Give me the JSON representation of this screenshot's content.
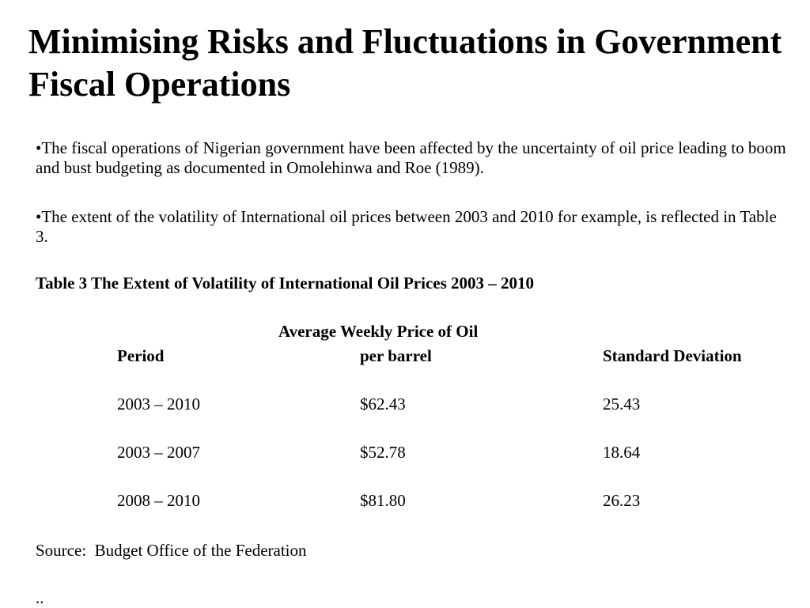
{
  "slide": {
    "title": "Minimising Risks and Fluctuations in Government Fiscal Operations",
    "bullets": [
      "•The fiscal operations of Nigerian government have been affected by the uncertainty of oil price leading to boom and bust budgeting as documented in Omolehinwa and Roe (1989).",
      "•The extent of the volatility of International oil prices between 2003 and 2010 for example, is reflected in Table 3."
    ]
  },
  "table": {
    "caption": "Table 3 The Extent of Volatility of International Oil Prices 2003 – 2010",
    "price_header_line1": "Average Weekly Price of Oil",
    "headers": {
      "period": "Period",
      "price": "per barrel",
      "sd": "Standard Deviation"
    },
    "rows": [
      {
        "period": "2003 – 2010",
        "price": "$62.43",
        "sd": "25.43"
      },
      {
        "period": "2003 – 2007",
        "price": "$52.78",
        "sd": "18.64"
      },
      {
        "period": "2008 – 2010",
        "price": "$81.80",
        "sd": "26.23"
      }
    ],
    "source": "Source:  Budget Office of the Federation",
    "trailing": ".."
  }
}
